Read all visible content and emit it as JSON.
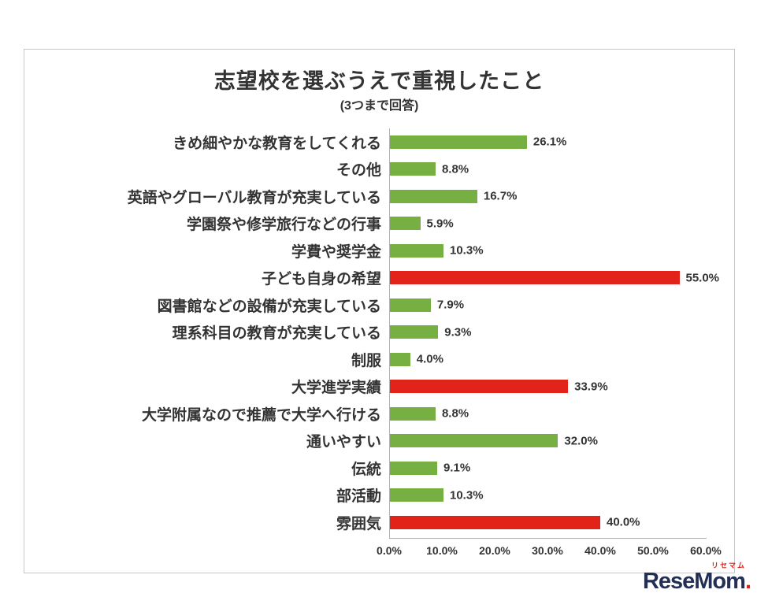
{
  "chart": {
    "title": "志望校を選ぶうえで重視したこと",
    "subtitle": "(3つまで回答)"
  },
  "chart_data": {
    "type": "bar",
    "orientation": "horizontal",
    "title": "志望校を選ぶうえで重視したこと",
    "subtitle": "(3つまで回答)",
    "categories": [
      "きめ細やかな教育をしてくれる",
      "その他",
      "英語やグローバル教育が充実している",
      "学園祭や修学旅行などの行事",
      "学費や奨学金",
      "子ども自身の希望",
      "図書館などの設備が充実している",
      "理系科目の教育が充実している",
      "制服",
      "大学進学実績",
      "大学附属なので推薦で大学へ行ける",
      "通いやすい",
      "伝統",
      "部活動",
      "雰囲気"
    ],
    "values": [
      26.1,
      8.8,
      16.7,
      5.9,
      10.3,
      55.0,
      7.9,
      9.3,
      4.0,
      33.9,
      8.8,
      32.0,
      9.1,
      10.3,
      40.0
    ],
    "value_labels": [
      "26.1%",
      "8.8%",
      "16.7%",
      "5.9%",
      "10.3%",
      "55.0%",
      "7.9%",
      "9.3%",
      "4.0%",
      "33.9%",
      "8.8%",
      "32.0%",
      "9.1%",
      "10.3%",
      "40.0%"
    ],
    "color_keys": [
      "green",
      "green",
      "green",
      "green",
      "green",
      "red",
      "green",
      "green",
      "green",
      "red",
      "green",
      "green",
      "green",
      "green",
      "red"
    ],
    "colors": {
      "green": "#76B043",
      "red": "#E2231A"
    },
    "xlim": [
      0,
      60
    ],
    "x_ticks": [
      "0.0%",
      "10.0%",
      "20.0%",
      "30.0%",
      "40.0%",
      "50.0%",
      "60.0%"
    ],
    "grid": false,
    "legend": false
  },
  "branding": {
    "name": "ReseMom",
    "dot": ".",
    "ruby": "リセマム"
  }
}
